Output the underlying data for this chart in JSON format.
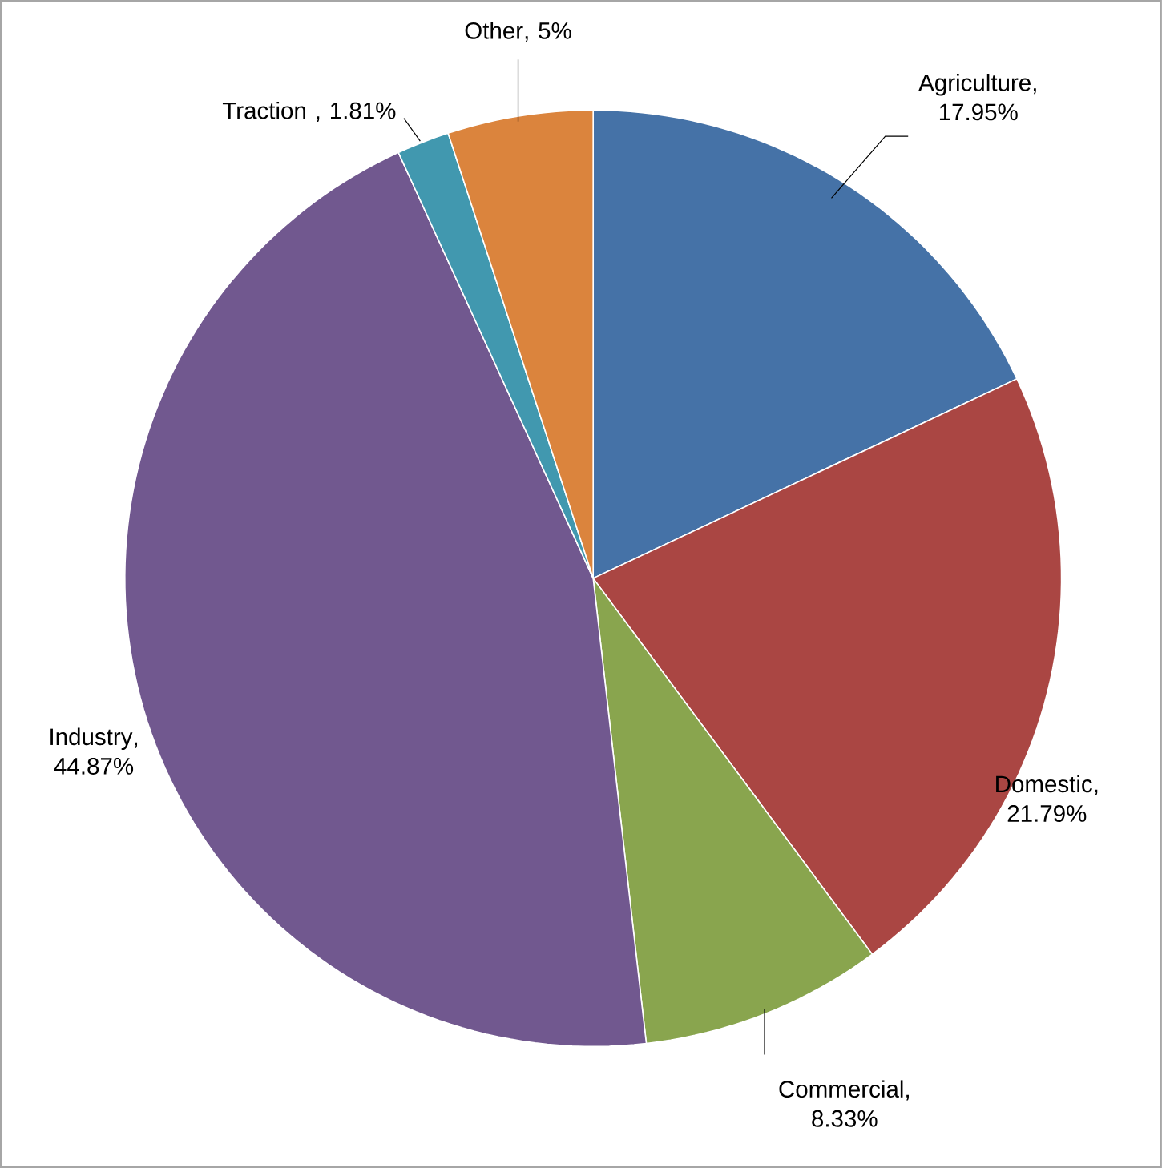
{
  "chart_data": {
    "type": "pie",
    "categories": [
      "Agriculture",
      "Domestic",
      "Commercial",
      "Industry",
      "Traction ",
      "Other"
    ],
    "values": [
      17.95,
      21.79,
      8.33,
      44.87,
      1.81,
      5
    ],
    "value_labels": [
      ", 17.95%",
      ", 21.79%",
      ", 8.33%",
      ", 44.87%",
      ", 1.81%",
      ", 5%"
    ],
    "colors": [
      "#4572a7",
      "#aa4643",
      "#89a54e",
      "#71588f",
      "#4198af",
      "#db843d"
    ]
  }
}
